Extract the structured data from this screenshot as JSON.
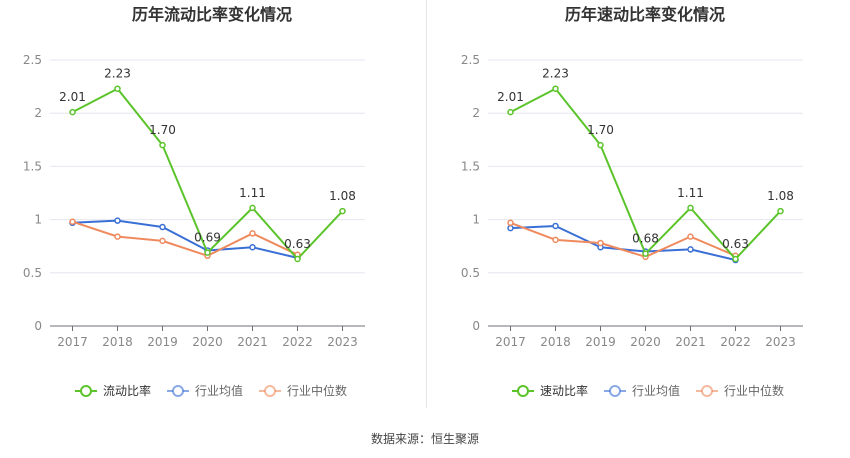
{
  "charts": [
    {
      "chart_data": {
        "type": "line",
        "title": "历年流动比率变化情况",
        "xlabel": "",
        "ylabel": "",
        "categories": [
          "2017",
          "2018",
          "2019",
          "2020",
          "2021",
          "2022",
          "2023"
        ],
        "y_ticks": [
          "0",
          "0.5",
          "1",
          "1.5",
          "2",
          "2.5"
        ],
        "ylim": [
          0,
          2.5
        ],
        "grid": true,
        "legend": "bottom",
        "series": [
          {
            "name": "流动比率",
            "color": "#5bc42a",
            "values": [
              2.01,
              2.23,
              1.7,
              0.69,
              1.11,
              0.63,
              1.08
            ],
            "labels": [
              "2.01",
              "2.23",
              "1.70",
              "0.69",
              "1.11",
              "0.63",
              "1.08"
            ]
          },
          {
            "name": "行业均值",
            "color": "#3a6fd6",
            "values": [
              0.97,
              0.99,
              0.93,
              0.71,
              0.74,
              0.64,
              null
            ]
          },
          {
            "name": "行业中位数",
            "color": "#ef8a5e",
            "values": [
              0.98,
              0.84,
              0.8,
              0.66,
              0.87,
              0.67,
              null
            ]
          }
        ]
      }
    },
    {
      "chart_data": {
        "type": "line",
        "title": "历年速动比率变化情况",
        "xlabel": "",
        "ylabel": "",
        "categories": [
          "2017",
          "2018",
          "2019",
          "2020",
          "2021",
          "2022",
          "2023"
        ],
        "y_ticks": [
          "0",
          "0.5",
          "1",
          "1.5",
          "2",
          "2.5"
        ],
        "ylim": [
          0,
          2.5
        ],
        "grid": true,
        "legend": "bottom",
        "series": [
          {
            "name": "速动比率",
            "color": "#5bc42a",
            "values": [
              2.01,
              2.23,
              1.7,
              0.68,
              1.11,
              0.63,
              1.08
            ],
            "labels": [
              "2.01",
              "2.23",
              "1.70",
              "0.68",
              "1.11",
              "0.63",
              "1.08"
            ]
          },
          {
            "name": "行业均值",
            "color": "#3a6fd6",
            "values": [
              0.92,
              0.94,
              0.74,
              0.7,
              0.72,
              0.62,
              null
            ]
          },
          {
            "name": "行业中位数",
            "color": "#ef8a5e",
            "values": [
              0.97,
              0.81,
              0.78,
              0.65,
              0.84,
              0.66,
              null
            ]
          }
        ]
      }
    }
  ],
  "source": "数据来源：恒生聚源"
}
